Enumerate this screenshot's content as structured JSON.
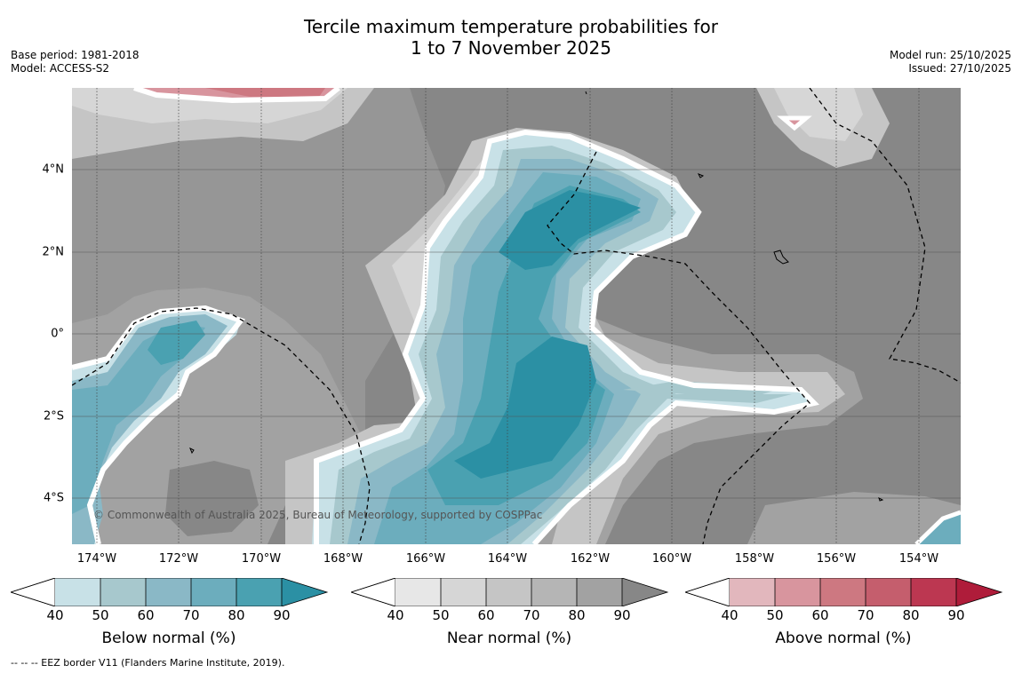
{
  "title_line1": "Tercile maximum temperature probabilities for",
  "title_line2": "1 to 7 November 2025",
  "base_period": "Base period: 1981-2018",
  "model": "Model: ACCESS-S2",
  "model_run": "Model run: 25/10/2025",
  "issued": "Issued: 27/10/2025",
  "x_ticks": [
    "174°W",
    "172°W",
    "170°W",
    "168°W",
    "166°W",
    "164°W",
    "162°W",
    "160°W",
    "158°W",
    "156°W",
    "154°W"
  ],
  "y_ticks": [
    "4°N",
    "2°N",
    "0°",
    "2°S",
    "4°S"
  ],
  "copyright": "© Commonwealth of Australia 2025, Bureau of Meteorology, supported by COSPPac",
  "colorbars": [
    {
      "title": "Below normal (%)",
      "ticks": [
        "40",
        "50",
        "60",
        "70",
        "80",
        "90"
      ],
      "colors": [
        "#c8e1e7",
        "#a7c8cd",
        "#8ab8c6",
        "#6cadbd",
        "#4aa1b1",
        "#2b90a4"
      ]
    },
    {
      "title": "Near normal (%)",
      "ticks": [
        "40",
        "50",
        "60",
        "70",
        "80",
        "90"
      ],
      "colors": [
        "#e7e7e7",
        "#d6d6d6",
        "#c5c5c5",
        "#b5b5b5",
        "#a2a2a2",
        "#878787"
      ]
    },
    {
      "title": "Above normal (%)",
      "ticks": [
        "40",
        "50",
        "60",
        "70",
        "80",
        "90"
      ],
      "colors": [
        "#e2b7bd",
        "#d8959e",
        "#cd7881",
        "#c55e6d",
        "#bc3751",
        "#af1c3a"
      ]
    }
  ],
  "footnote": "--  --  -- EEZ border V11 (Flanders Marine Institute, 2019)."
}
